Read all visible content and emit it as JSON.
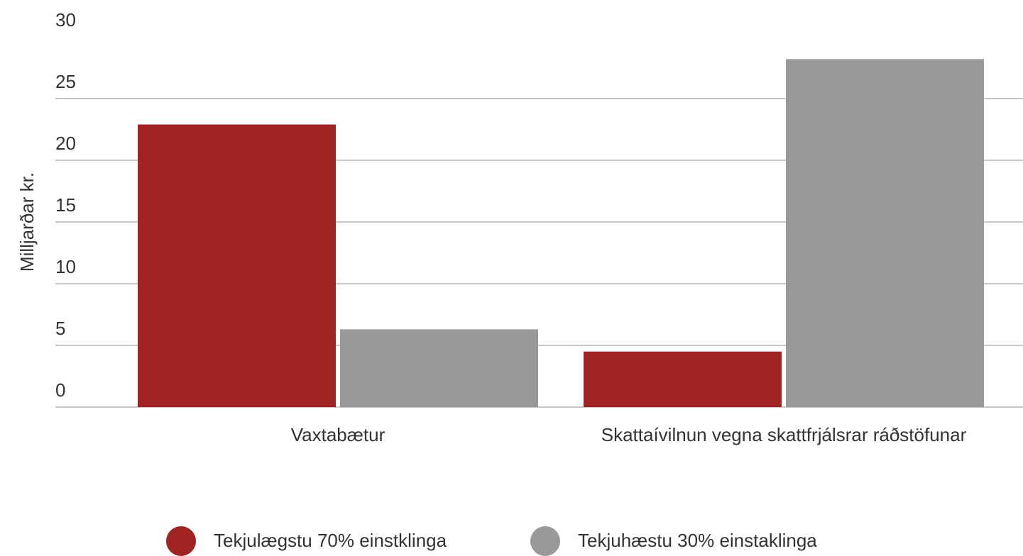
{
  "chart_data": {
    "type": "bar",
    "y_label": "Milljarðar kr.",
    "categories": [
      "Vaxtabætur",
      "Skattaívilnun vegna skattfrjálsrar ráðstöfunar"
    ],
    "series": [
      {
        "name": "Tekjulægstu 70% einstklinga",
        "color": "#9e2322",
        "values": [
          22.9,
          4.5
        ]
      },
      {
        "name": "Tekjuhæstu 30% einstaklinga",
        "color": "#999999",
        "values": [
          6.3,
          28.2
        ]
      }
    ],
    "ylim": [
      0,
      30
    ],
    "yticks": [
      0,
      5,
      10,
      15,
      20,
      25,
      30
    ],
    "grid": true,
    "legend": "bottom"
  }
}
